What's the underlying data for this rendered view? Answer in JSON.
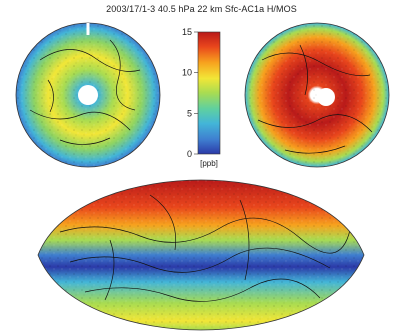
{
  "figure": {
    "title": "2003/17/1-3  40.5 hPa 22 km Sfc-AC1a  H/MOS",
    "colorbar": {
      "unit": "[ppb]",
      "ticks": [
        "0",
        "5",
        "10",
        "15"
      ],
      "range": [
        0,
        15
      ],
      "colors": [
        "#2b3aa8",
        "#3f7fd0",
        "#43b5d8",
        "#5fd0a0",
        "#a8dc52",
        "#f2e637",
        "#f7a21e",
        "#e9461c",
        "#b91a1a"
      ]
    },
    "maps": [
      {
        "name": "north-polar-stereographic",
        "dominant_level": "low-to-mid"
      },
      {
        "name": "south-polar-stereographic",
        "dominant_level": "high"
      },
      {
        "name": "global-sinusoidal",
        "dominant_level": "high near pole, low in tropics"
      }
    ]
  }
}
